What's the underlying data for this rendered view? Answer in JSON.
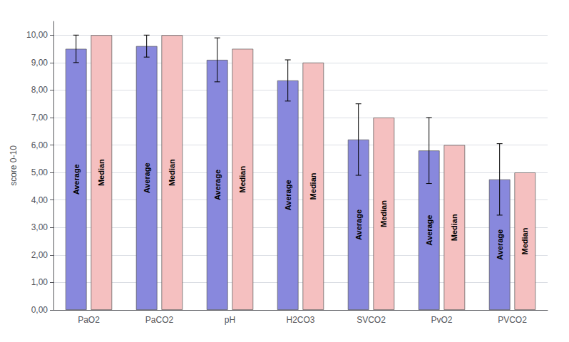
{
  "chart_data": {
    "type": "bar",
    "categories": [
      "PaO2",
      "PaCO2",
      "pH",
      "H2CO3",
      "SVCO2",
      "PvO2",
      "PVCO2"
    ],
    "series": [
      {
        "name": "Average",
        "color": "#8888DD",
        "values": [
          9.5,
          9.6,
          9.1,
          8.35,
          6.2,
          5.8,
          4.75
        ],
        "errors": [
          0.5,
          0.4,
          0.8,
          0.75,
          1.3,
          1.2,
          1.3
        ]
      },
      {
        "name": "Median",
        "color": "#F5C0C0",
        "values": [
          10.0,
          10.0,
          9.5,
          9.0,
          7.0,
          6.0,
          5.0
        ]
      }
    ],
    "ylabel": "score 0-10",
    "ylim": [
      0,
      10.5
    ],
    "yticks": [
      {
        "value": 0.0,
        "label": "0,00"
      },
      {
        "value": 1.0,
        "label": "1,00"
      },
      {
        "value": 2.0,
        "label": "2,00"
      },
      {
        "value": 3.0,
        "label": "3,00"
      },
      {
        "value": 4.0,
        "label": "4,00"
      },
      {
        "value": 5.0,
        "label": "5,00"
      },
      {
        "value": 6.0,
        "label": "6,00"
      },
      {
        "value": 7.0,
        "label": "7,00"
      },
      {
        "value": 8.0,
        "label": "8,00"
      },
      {
        "value": 9.0,
        "label": "9,00"
      },
      {
        "value": 10.0,
        "label": "10,00"
      }
    ],
    "grid": true
  }
}
